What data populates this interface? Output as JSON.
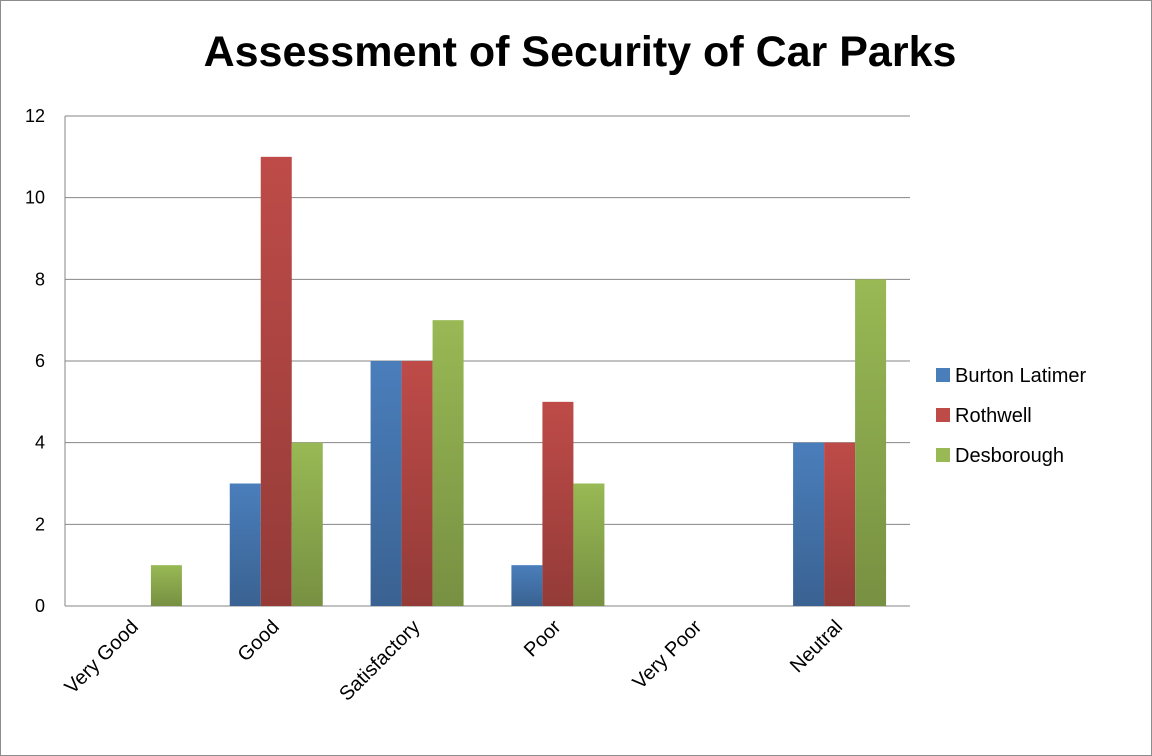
{
  "chart_data": {
    "type": "bar",
    "title": "Assessment of Security of Car Parks",
    "categories": [
      "Very Good",
      "Good",
      "Satisfactory",
      "Poor",
      "Very Poor",
      "Neutral"
    ],
    "series": [
      {
        "name": "Burton Latimer",
        "values": [
          0,
          3,
          6,
          1,
          0,
          4
        ],
        "color": "#4a7ebb"
      },
      {
        "name": "Rothwell",
        "values": [
          0,
          11,
          6,
          5,
          0,
          4
        ],
        "color": "#be4b48"
      },
      {
        "name": "Desborough",
        "values": [
          1,
          4,
          7,
          3,
          0,
          8
        ],
        "color": "#98b954"
      }
    ],
    "ylim": [
      0,
      12
    ],
    "yticks": [
      "0",
      "2",
      "4",
      "6",
      "8",
      "10",
      "12"
    ],
    "grid": true,
    "legend": "right"
  }
}
